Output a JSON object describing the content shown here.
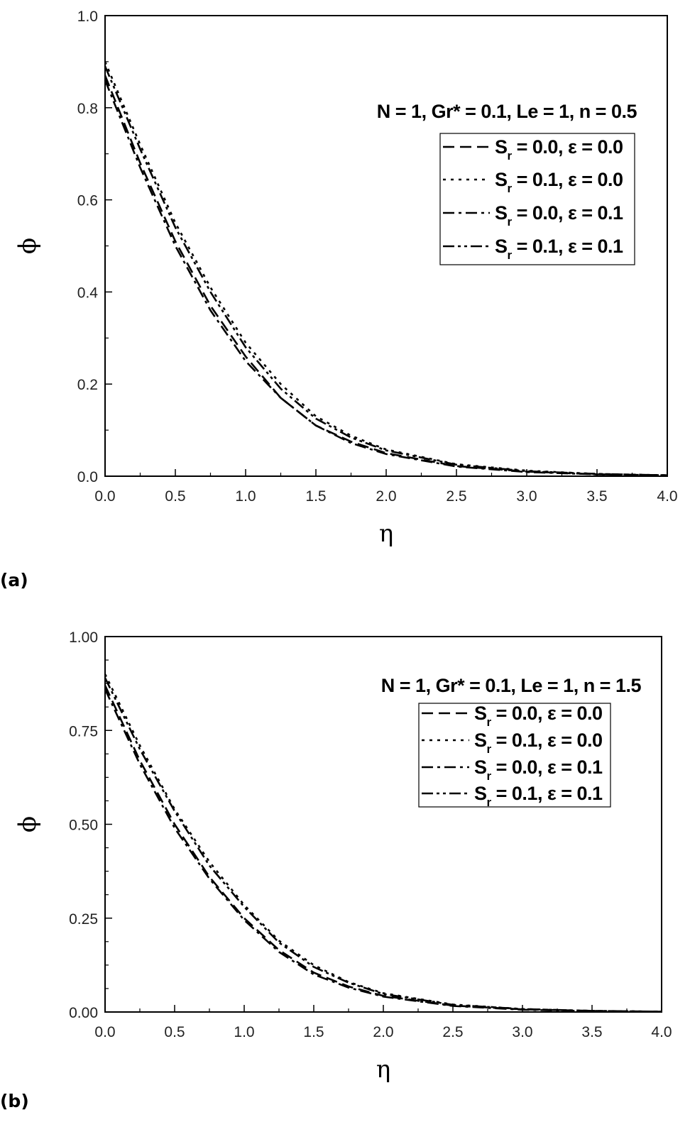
{
  "chart_data": [
    {
      "type": "line",
      "panel_label": "(a)",
      "annotation": "N = 1, Gr* = 0.1, Le = 1, n = 0.5",
      "xlabel": "η",
      "ylabel": "ϕ",
      "xlim": [
        0,
        4
      ],
      "ylim": [
        0,
        1
      ],
      "xticks": [
        "0.0",
        "0.5",
        "1.0",
        "1.5",
        "2.0",
        "2.5",
        "3.0",
        "3.5",
        "4.0"
      ],
      "yticks": [
        "0.0",
        "0.2",
        "0.4",
        "0.6",
        "0.8",
        "1.0"
      ],
      "legend_position": "top-right",
      "x": [
        0,
        0.25,
        0.5,
        0.75,
        1.0,
        1.25,
        1.5,
        1.75,
        2.0,
        2.5,
        3.0,
        3.5,
        4.0
      ],
      "series": [
        {
          "name": "Sr = 0.0, ε = 0.0",
          "style": "dash",
          "values": [
            0.87,
            0.68,
            0.51,
            0.37,
            0.26,
            0.17,
            0.11,
            0.075,
            0.05,
            0.022,
            0.01,
            0.004,
            0.002
          ]
        },
        {
          "name": "Sr = 0.1, ε = 0.0",
          "style": "dot",
          "values": [
            0.9,
            0.72,
            0.55,
            0.41,
            0.29,
            0.2,
            0.13,
            0.088,
            0.058,
            0.026,
            0.012,
            0.005,
            0.002
          ]
        },
        {
          "name": "Sr = 0.0, ε = 0.1",
          "style": "dashdot",
          "values": [
            0.86,
            0.67,
            0.5,
            0.36,
            0.25,
            0.17,
            0.11,
            0.072,
            0.048,
            0.021,
            0.009,
            0.004,
            0.002
          ]
        },
        {
          "name": "Sr = 0.1, ε = 0.1",
          "style": "dashdotdot",
          "values": [
            0.89,
            0.71,
            0.54,
            0.4,
            0.28,
            0.19,
            0.125,
            0.084,
            0.056,
            0.025,
            0.011,
            0.005,
            0.002
          ]
        }
      ]
    },
    {
      "type": "line",
      "panel_label": "(b)",
      "annotation": "N = 1, Gr* = 0.1, Le = 1, n = 1.5",
      "xlabel": "η",
      "ylabel": "ϕ",
      "xlim": [
        0,
        4
      ],
      "ylim": [
        0,
        1
      ],
      "xticks": [
        "0.0",
        "0.5",
        "1.0",
        "1.5",
        "2.0",
        "2.5",
        "3.0",
        "3.5",
        "4.0"
      ],
      "yticks": [
        "0.00",
        "0.25",
        "0.50",
        "0.75",
        "1.00"
      ],
      "legend_position": "top-right",
      "x": [
        0,
        0.25,
        0.5,
        0.75,
        1.0,
        1.25,
        1.5,
        1.75,
        2.0,
        2.5,
        3.0,
        3.5,
        4.0
      ],
      "series": [
        {
          "name": "Sr = 0.0, ε = 0.0",
          "style": "dash",
          "values": [
            0.87,
            0.67,
            0.5,
            0.36,
            0.25,
            0.165,
            0.105,
            0.068,
            0.043,
            0.017,
            0.007,
            0.003,
            0.001
          ]
        },
        {
          "name": "Sr = 0.1, ε = 0.0",
          "style": "dot",
          "values": [
            0.9,
            0.71,
            0.54,
            0.4,
            0.285,
            0.19,
            0.125,
            0.08,
            0.05,
            0.02,
            0.008,
            0.003,
            0.001
          ]
        },
        {
          "name": "Sr = 0.0, ε = 0.1",
          "style": "dashdot",
          "values": [
            0.86,
            0.66,
            0.49,
            0.355,
            0.245,
            0.16,
            0.1,
            0.065,
            0.041,
            0.016,
            0.006,
            0.002,
            0.001
          ]
        },
        {
          "name": "Sr = 0.1, ε = 0.1",
          "style": "dashdotdot",
          "values": [
            0.89,
            0.7,
            0.535,
            0.39,
            0.28,
            0.185,
            0.12,
            0.078,
            0.048,
            0.019,
            0.008,
            0.003,
            0.001
          ]
        }
      ]
    }
  ]
}
